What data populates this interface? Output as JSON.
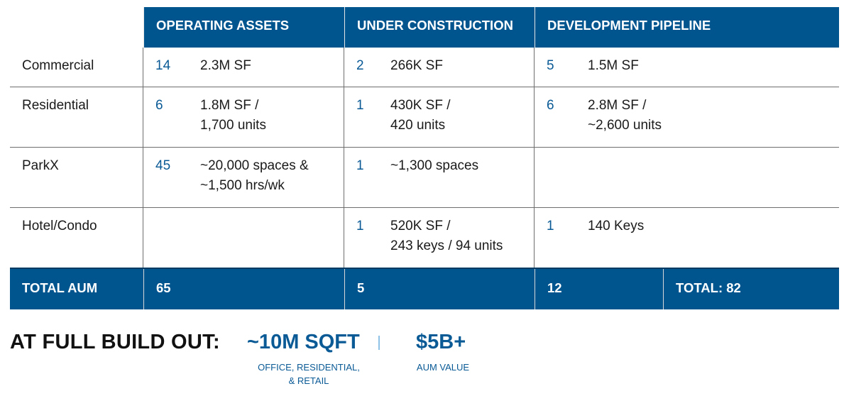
{
  "headers": [
    "OPERATING ASSETS",
    "UNDER CONSTRUCTION",
    "DEVELOPMENT PIPELINE"
  ],
  "rows": [
    {
      "label": "Commercial",
      "op_num": "14",
      "op_val": "2.3M SF",
      "uc_num": "2",
      "uc_val": "266K SF",
      "dp_num": "5",
      "dp_val": "1.5M SF"
    },
    {
      "label": "Residential",
      "op_num": "6",
      "op_val": "1.8M SF /\n1,700 units",
      "uc_num": "1",
      "uc_val": "430K SF /\n420 units",
      "dp_num": "6",
      "dp_val": "2.8M SF /\n~2,600 units"
    },
    {
      "label": "ParkX",
      "op_num": "45",
      "op_val": "~20,000 spaces &\n~1,500 hrs/wk",
      "uc_num": "1",
      "uc_val": "~1,300 spaces",
      "dp_num": "",
      "dp_val": ""
    },
    {
      "label": "Hotel/Condo",
      "op_num": "",
      "op_val": "",
      "uc_num": "1",
      "uc_val": "520K SF /\n243 keys / 94 units",
      "dp_num": "1",
      "dp_val": "140 Keys"
    }
  ],
  "totals": {
    "label": "TOTAL AUM",
    "operating": "65",
    "construction": "5",
    "pipeline": "12",
    "grand": "TOTAL: 82"
  },
  "buildout": {
    "label": "AT FULL BUILD OUT:",
    "metric1": "~10M SQFT",
    "metric1_sub": "OFFICE, RESIDENTIAL,\n& RETAIL",
    "metric2": "$5B+",
    "metric2_sub": "AUM VALUE"
  },
  "colors": {
    "accent": "#00558f",
    "number": "#0a5a96",
    "separator": "#8ec2e6"
  }
}
